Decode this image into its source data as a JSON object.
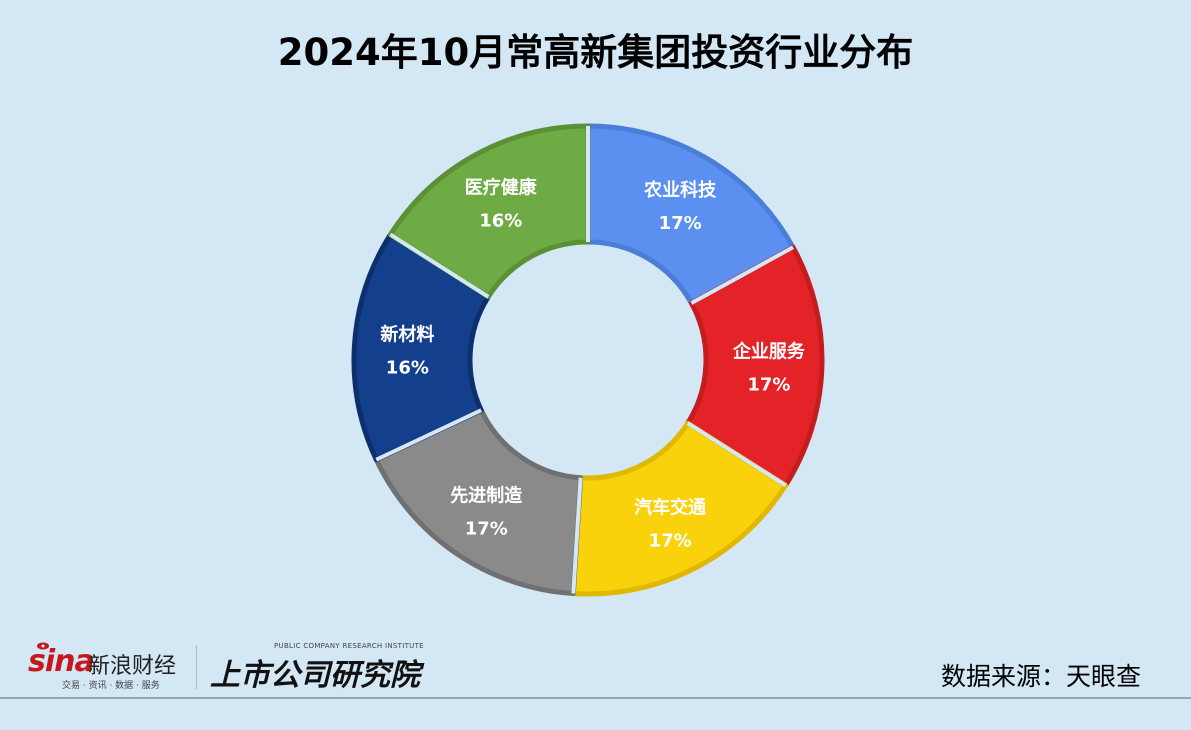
{
  "title": "2024年10月常高新集团投资行业分布",
  "source": "数据来源：天眼查",
  "logos": {
    "sina_word": "sina",
    "sina_cn": "新浪财经",
    "sina_sub": "交易 · 资讯 · 数据 · 服务",
    "institute_en": "PUBLIC COMPANY RESEARCH INSTITUTE",
    "institute_cn": "上市公司研究院"
  },
  "chart_data": {
    "type": "pie",
    "donut": true,
    "slices": [
      {
        "label": "农业科技",
        "value": 17,
        "display": "17%",
        "color": "#5b8ff0",
        "edge": "#4a7ed8"
      },
      {
        "label": "企业服务",
        "value": 17,
        "display": "17%",
        "color": "#e32328",
        "edge": "#c51c20"
      },
      {
        "label": "汽车交通",
        "value": 17,
        "display": "17%",
        "color": "#fad20c",
        "edge": "#e0b800"
      },
      {
        "label": "先进制造",
        "value": 17,
        "display": "17%",
        "color": "#8a8a8a",
        "edge": "#707070"
      },
      {
        "label": "新材料",
        "value": 16,
        "display": "16%",
        "color": "#143f8c",
        "edge": "#0e2f6e"
      },
      {
        "label": "医疗健康",
        "value": 16,
        "display": "16%",
        "color": "#6fab45",
        "edge": "#5a9136"
      }
    ]
  }
}
